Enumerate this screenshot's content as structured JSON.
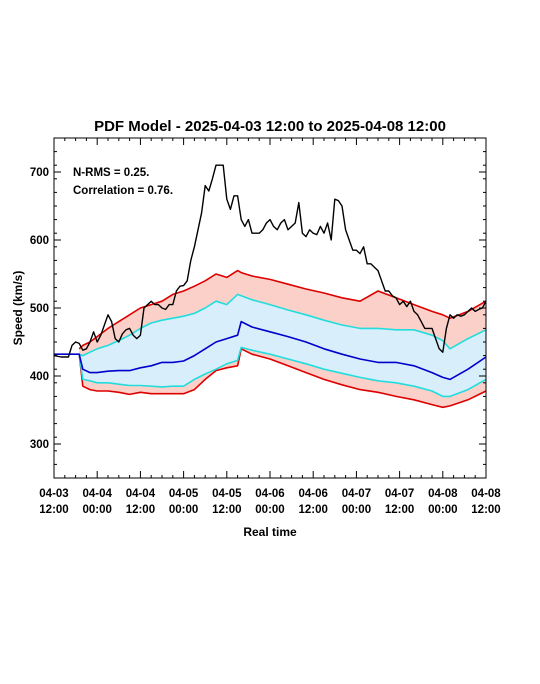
{
  "chart_data": {
    "type": "line",
    "title": "PDF Model - 2025-04-03 12:00 to 2025-04-08 12:00",
    "xlabel": "Real time",
    "ylabel": "Speed (km/s)",
    "xlim_hours": [
      0,
      120
    ],
    "ylim": [
      250,
      750
    ],
    "y_ticks": [
      300,
      400,
      500,
      600,
      700
    ],
    "x_tick_hours": [
      0,
      12,
      24,
      36,
      48,
      60,
      72,
      84,
      96,
      108,
      120
    ],
    "x_tick_labels": [
      [
        "04-03",
        "12:00"
      ],
      [
        "04-04",
        "00:00"
      ],
      [
        "04-04",
        "12:00"
      ],
      [
        "04-05",
        "00:00"
      ],
      [
        "04-05",
        "12:00"
      ],
      [
        "04-06",
        "00:00"
      ],
      [
        "04-06",
        "12:00"
      ],
      [
        "04-07",
        "00:00"
      ],
      [
        "04-07",
        "12:00"
      ],
      [
        "04-08",
        "00:00"
      ],
      [
        "04-08",
        "12:00"
      ]
    ],
    "annotations": [
      "N-RMS = 0.25.",
      "Correlation = 0.76."
    ],
    "colors": {
      "observed": "#000000",
      "outer_band_line": "#dd0000",
      "outer_band_fill": "#fbd0c8",
      "inner_band_line": "#22dddd",
      "inner_band_fill": "#d8eefa",
      "median": "#0000cc"
    },
    "observed": {
      "x": [
        0,
        2,
        3,
        4,
        5,
        6,
        7,
        8,
        9,
        10,
        11,
        12,
        13,
        14,
        15,
        16,
        17,
        18,
        19,
        20,
        21,
        22,
        23,
        24,
        25,
        26,
        27,
        28,
        29,
        30,
        31,
        32,
        33,
        34,
        35,
        36,
        37,
        38,
        39,
        40,
        41,
        42,
        43,
        44,
        45,
        46,
        47,
        48,
        49,
        50,
        51,
        52,
        53,
        54,
        55,
        56,
        57,
        58,
        59,
        60,
        61,
        62,
        63,
        64,
        65,
        66,
        67,
        68,
        69,
        70,
        71,
        72,
        73,
        74,
        75,
        76,
        77,
        78,
        79,
        80,
        81,
        82,
        83,
        84,
        85,
        86,
        87,
        88,
        89,
        90,
        91,
        92,
        93,
        94,
        95,
        96,
        97,
        98,
        99,
        100,
        101,
        102,
        103,
        104,
        105,
        106,
        107,
        108,
        109,
        110,
        111,
        112,
        113,
        114,
        115,
        116,
        117,
        118,
        119,
        120
      ],
      "y": [
        430,
        428,
        428,
        428,
        445,
        450,
        448,
        438,
        440,
        450,
        465,
        450,
        460,
        475,
        490,
        480,
        455,
        450,
        462,
        468,
        470,
        460,
        455,
        460,
        500,
        505,
        510,
        505,
        505,
        500,
        498,
        505,
        505,
        525,
        532,
        533,
        540,
        570,
        590,
        615,
        640,
        680,
        672,
        690,
        710,
        710,
        710,
        660,
        645,
        665,
        665,
        630,
        620,
        630,
        610,
        610,
        610,
        615,
        625,
        630,
        620,
        615,
        625,
        630,
        615,
        620,
        625,
        655,
        610,
        605,
        615,
        610,
        608,
        620,
        610,
        625,
        600,
        660,
        658,
        650,
        615,
        600,
        585,
        585,
        580,
        590,
        565,
        565,
        560,
        555,
        540,
        525,
        525,
        518,
        515,
        505,
        510,
        502,
        510,
        495,
        490,
        480,
        470,
        470,
        470,
        455,
        440,
        435,
        470,
        490,
        485,
        490,
        488,
        490,
        495,
        500,
        495,
        498,
        500,
        510
      ]
    },
    "outer_upper": {
      "x": [
        7,
        8,
        10,
        12,
        15,
        18,
        21,
        24,
        27,
        30,
        33,
        36,
        39,
        42,
        45,
        48,
        51,
        52,
        55,
        60,
        65,
        70,
        75,
        80,
        85,
        90,
        95,
        100,
        105,
        108,
        110,
        115,
        120
      ],
      "y": [
        440,
        445,
        450,
        458,
        470,
        480,
        490,
        500,
        505,
        510,
        520,
        525,
        532,
        540,
        550,
        545,
        555,
        552,
        547,
        542,
        535,
        528,
        522,
        515,
        510,
        525,
        515,
        505,
        495,
        490,
        485,
        495,
        510
      ]
    },
    "inner_upper": {
      "x": [
        7,
        8,
        10,
        12,
        15,
        18,
        21,
        24,
        27,
        30,
        33,
        36,
        39,
        42,
        45,
        48,
        51,
        52,
        55,
        60,
        65,
        70,
        75,
        80,
        85,
        90,
        95,
        100,
        105,
        108,
        110,
        115,
        120
      ],
      "y": [
        432,
        430,
        435,
        440,
        445,
        452,
        460,
        470,
        478,
        482,
        485,
        488,
        492,
        500,
        510,
        505,
        520,
        518,
        512,
        505,
        497,
        490,
        482,
        475,
        470,
        470,
        468,
        468,
        460,
        452,
        440,
        455,
        468
      ]
    },
    "median": {
      "x": [
        0,
        6,
        7,
        8,
        10,
        12,
        15,
        18,
        21,
        24,
        27,
        30,
        33,
        36,
        39,
        42,
        45,
        48,
        51,
        52,
        55,
        60,
        65,
        70,
        75,
        80,
        85,
        90,
        95,
        100,
        105,
        108,
        110,
        115,
        120
      ],
      "y": [
        432,
        432,
        432,
        410,
        405,
        405,
        407,
        408,
        408,
        412,
        415,
        420,
        420,
        422,
        430,
        440,
        450,
        455,
        460,
        480,
        472,
        465,
        458,
        450,
        440,
        432,
        425,
        420,
        420,
        415,
        405,
        398,
        395,
        410,
        428
      ]
    },
    "inner_lower": {
      "x": [
        7,
        8,
        10,
        12,
        15,
        18,
        21,
        24,
        27,
        30,
        33,
        36,
        39,
        42,
        45,
        48,
        51,
        52,
        55,
        60,
        65,
        70,
        75,
        80,
        85,
        90,
        95,
        100,
        105,
        108,
        110,
        115,
        120
      ],
      "y": [
        432,
        395,
        393,
        390,
        390,
        388,
        386,
        386,
        385,
        384,
        385,
        385,
        395,
        403,
        410,
        418,
        423,
        442,
        438,
        432,
        425,
        418,
        410,
        404,
        398,
        393,
        390,
        385,
        378,
        370,
        370,
        380,
        395
      ]
    },
    "outer_lower": {
      "x": [
        7,
        8,
        10,
        12,
        15,
        18,
        21,
        24,
        27,
        30,
        33,
        36,
        39,
        42,
        45,
        48,
        51,
        52,
        55,
        60,
        65,
        70,
        75,
        80,
        85,
        90,
        95,
        100,
        105,
        108,
        110,
        115,
        120
      ],
      "y": [
        432,
        385,
        380,
        378,
        378,
        376,
        373,
        376,
        374,
        374,
        374,
        374,
        380,
        395,
        408,
        412,
        415,
        440,
        432,
        425,
        415,
        405,
        395,
        387,
        380,
        376,
        370,
        365,
        358,
        354,
        356,
        365,
        378
      ]
    }
  }
}
